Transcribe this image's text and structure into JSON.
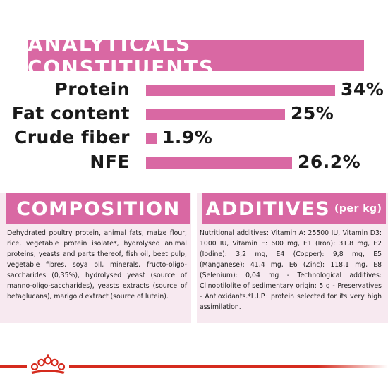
{
  "title": "ANALYTICALS CONSTITUENTS",
  "brand_color": "#d968a3",
  "nutrients": [
    {
      "label": "Protein",
      "value_text": "34%",
      "value": 34
    },
    {
      "label": "Fat content",
      "value_text": "25%",
      "value": 25
    },
    {
      "label": "Crude fiber",
      "value_text": "1.9%",
      "value": 1.9
    },
    {
      "label": "NFE",
      "value_text": "26.2%",
      "value": 26.2
    }
  ],
  "composition": {
    "heading": "COMPOSITION",
    "text": "Dehydrated poultry protein, animal fats, maize flour, rice, vegetable protein isolate*, hydrolysed animal proteins, yeasts and parts thereof, fish oil, beet pulp, vegetable fibres, soya oil, minerals, fructo-oligo-saccharides (0,35%), hydrolysed yeast (source of manno-oligo-saccharides), yeasts extracts (source of betaglucans), marigold extract (source of lutein)."
  },
  "additives": {
    "heading": "ADDITIVES",
    "unit": "(per kg)",
    "text": "Nutritional additives: Vitamin A: 25500 IU, Vitamin D3: 1000 IU, Vitamin E: 600 mg, E1 (Iron): 31,8 mg, E2 (Iodine): 3,2 mg, E4 (Copper): 9,8 mg, E5 (Manganese): 41,4 mg, E6 (Zinc): 118,1 mg, E8 (Selenium): 0,04 mg - Technological additives: Clinoptilolite of sedimentary origin: 5 g - Preservatives - Antioxidants.*L.I.P.: protein selected for its very high assimilation."
  },
  "logo_icon": "royal-canin-crown-icon",
  "accent_red": "#d52b1e"
}
